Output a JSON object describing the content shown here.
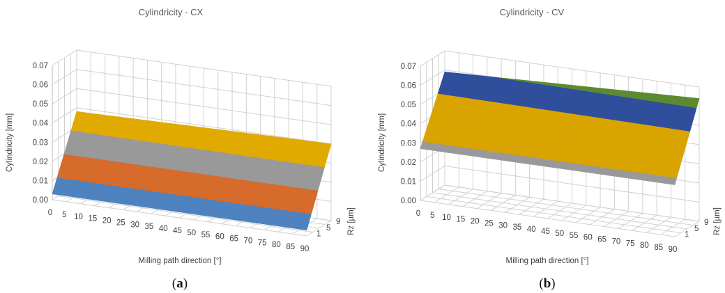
{
  "chart_data": [
    {
      "type": "surface",
      "title": "Cylindricity - CX",
      "xlabel": "Milling path direction [°]",
      "ylabel": "Rz [µm]",
      "zlabel": "Cylindricity [mm]",
      "caption": "(a)",
      "caption_letter": "a",
      "x_ticks": [
        "0",
        "5",
        "10",
        "15",
        "20",
        "25",
        "30",
        "35",
        "40",
        "45",
        "50",
        "55",
        "60",
        "65",
        "70",
        "75",
        "80",
        "85",
        "90"
      ],
      "y_ticks": [
        "1",
        "5",
        "9"
      ],
      "z_ticks": [
        "0.00",
        "0.01",
        "0.02",
        "0.03",
        "0.04",
        "0.05",
        "0.06",
        "0.07"
      ],
      "zlim": [
        0,
        0.07
      ],
      "x_range": [
        0,
        90
      ],
      "y_range": [
        1,
        9
      ],
      "corners": {
        "x0_y1": 0.003,
        "x90_y1": 0.003,
        "x0_y9": 0.038,
        "x90_y9": 0.04
      },
      "bands": [
        {
          "range": [
            0.0,
            0.01
          ],
          "color": "#4e82bf"
        },
        {
          "range": [
            0.01,
            0.02
          ],
          "color": "#d66b2b"
        },
        {
          "range": [
            0.02,
            0.03
          ],
          "color": "#999999"
        },
        {
          "range": [
            0.03,
            0.04
          ],
          "color": "#e0aa00"
        }
      ]
    },
    {
      "type": "surface",
      "title": "Cylindricity - CV",
      "xlabel": "Milling path direction [°]",
      "ylabel": "Rz [µm]",
      "zlabel": "Cylindricity [mm]",
      "caption": "(b)",
      "caption_letter": "b",
      "x_ticks": [
        "0",
        "5",
        "10",
        "15",
        "20",
        "25",
        "30",
        "35",
        "40",
        "45",
        "50",
        "55",
        "60",
        "65",
        "70",
        "75",
        "80",
        "85",
        "90"
      ],
      "y_ticks": [
        "1",
        "5",
        "9"
      ],
      "z_ticks": [
        "0.00",
        "0.01",
        "0.02",
        "0.03",
        "0.04",
        "0.05",
        "0.06",
        "0.07"
      ],
      "zlim": [
        0,
        0.07
      ],
      "x_range": [
        0,
        90
      ],
      "y_range": [
        1,
        9
      ],
      "corners": {
        "x0_y1": 0.027,
        "x90_y1": 0.027,
        "x0_y9": 0.059,
        "x90_y9": 0.064
      },
      "bands": [
        {
          "range": [
            0.02,
            0.03
          ],
          "color": "#999999"
        },
        {
          "range": [
            0.03,
            0.04
          ],
          "color": "#d9a300"
        },
        {
          "range": [
            0.04,
            0.05
          ],
          "color": "#d9a300"
        },
        {
          "range": [
            0.05,
            0.06
          ],
          "color": "#2f4e9c"
        },
        {
          "range": [
            0.06,
            0.07
          ],
          "color": "#5c8a31"
        }
      ]
    }
  ]
}
